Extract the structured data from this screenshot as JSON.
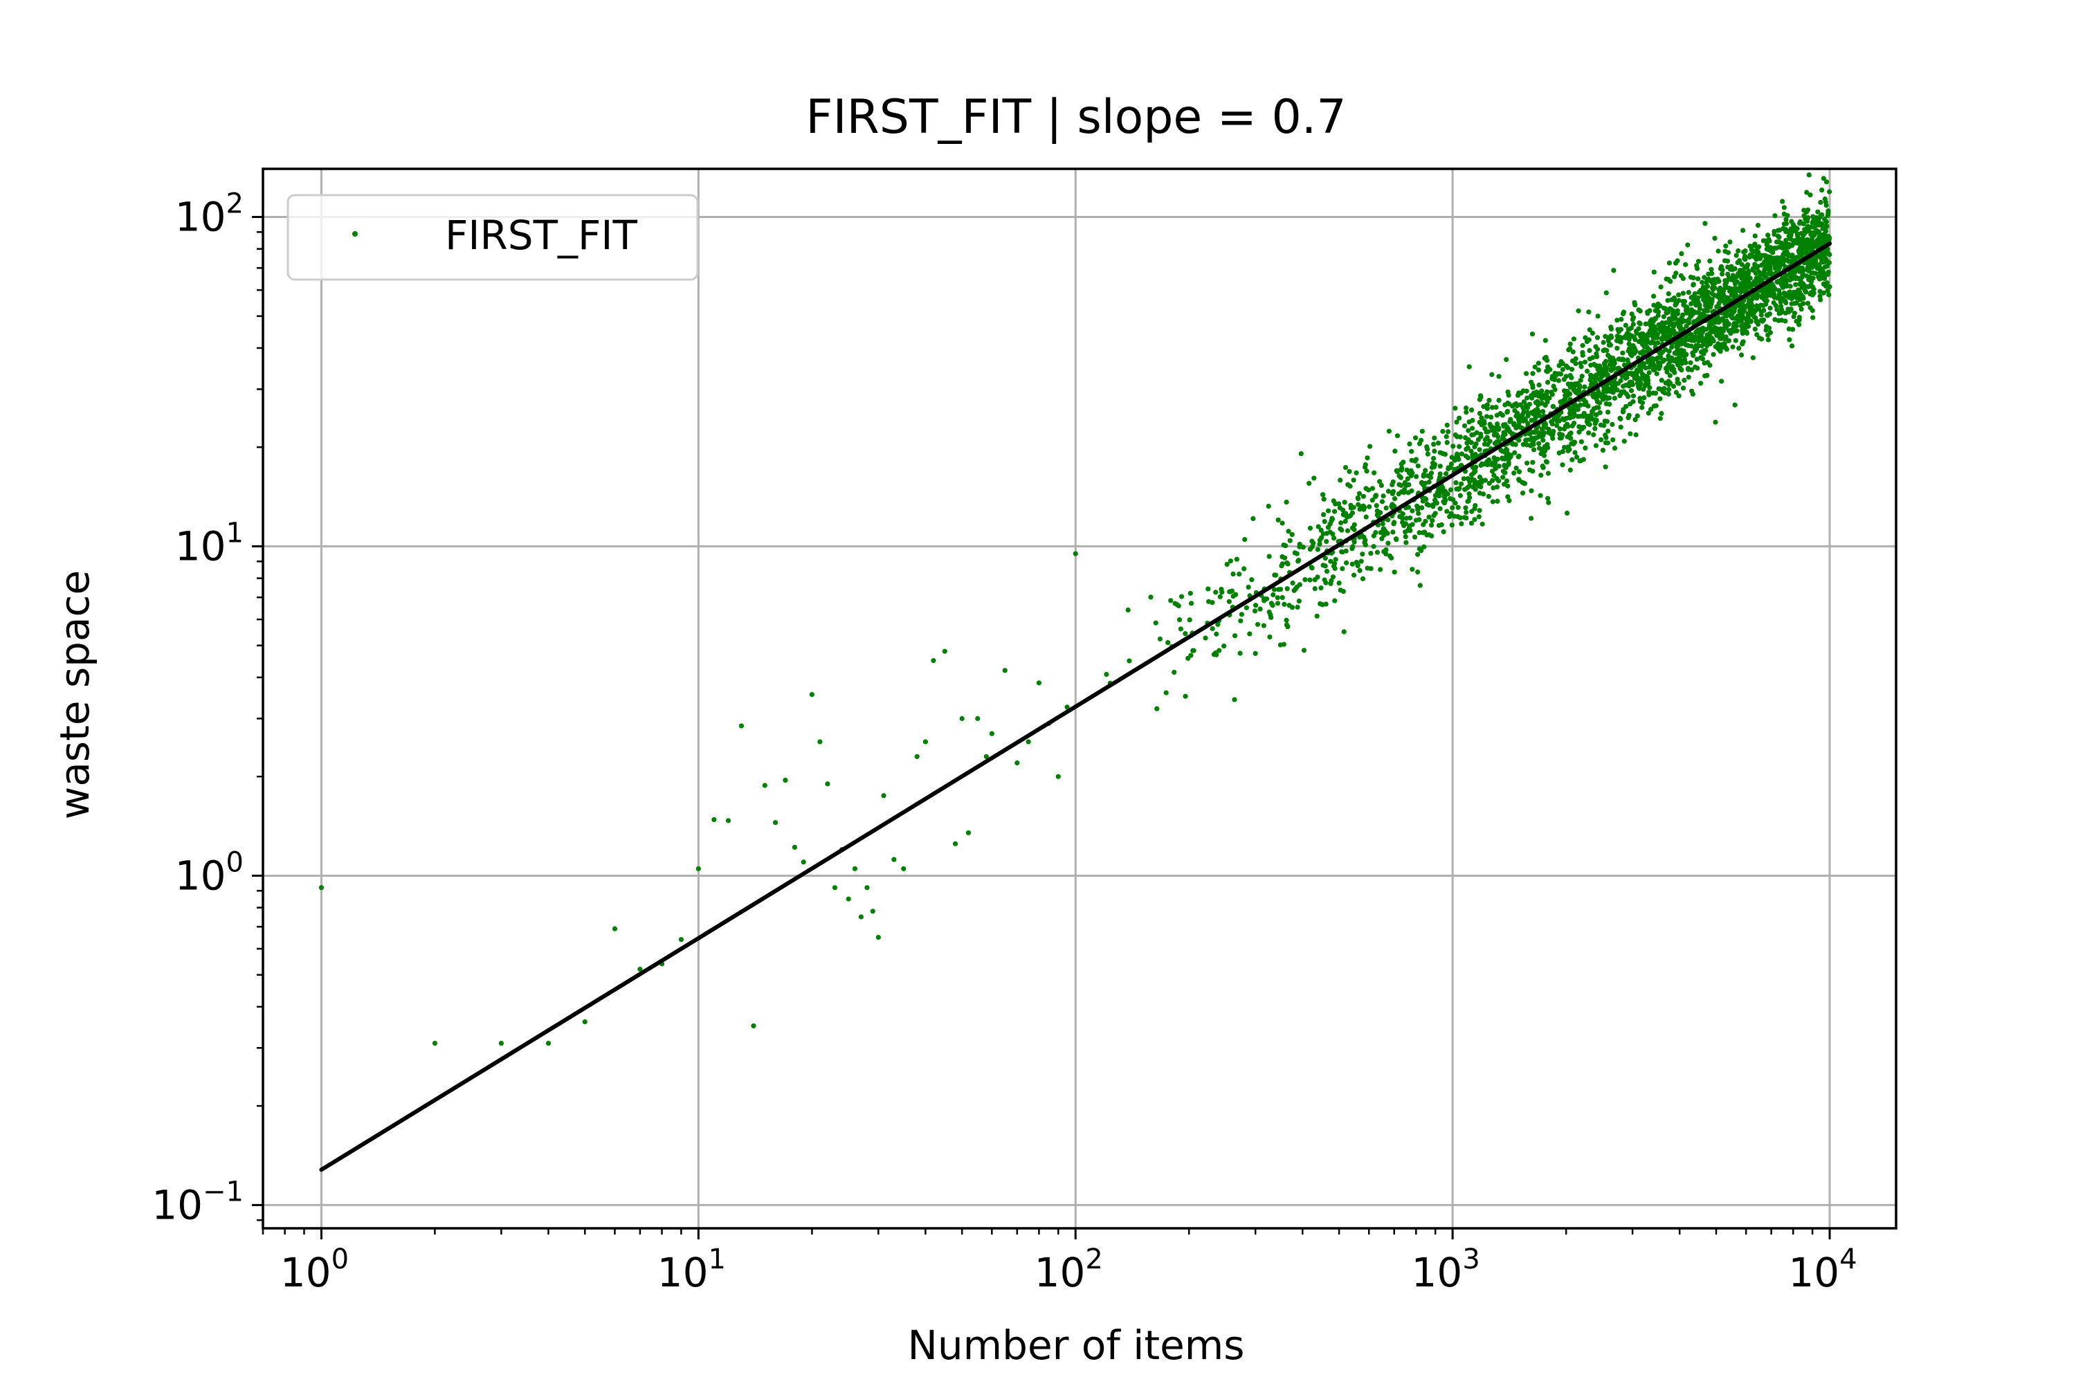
{
  "chart_data": {
    "type": "scatter",
    "title": "FIRST_FIT | slope = 0.7",
    "xlabel": "Number of items",
    "ylabel": "waste space",
    "xscale": "log",
    "yscale": "log",
    "xlim": [
      0.7,
      15000
    ],
    "ylim": [
      0.085,
      140
    ],
    "grid": true,
    "legend": {
      "placement": "top-left",
      "entries": [
        "FIRST_FIT"
      ]
    },
    "x_ticks": [
      {
        "value": 1,
        "base": "10",
        "exp": "0"
      },
      {
        "value": 10,
        "base": "10",
        "exp": "1"
      },
      {
        "value": 100,
        "base": "10",
        "exp": "2"
      },
      {
        "value": 1000,
        "base": "10",
        "exp": "3"
      },
      {
        "value": 10000,
        "base": "10",
        "exp": "4"
      }
    ],
    "y_ticks": [
      {
        "value": 0.1,
        "base": "10",
        "exp": "−1"
      },
      {
        "value": 1,
        "base": "10",
        "exp": "0"
      },
      {
        "value": 10,
        "base": "10",
        "exp": "1"
      },
      {
        "value": 100,
        "base": "10",
        "exp": "2"
      }
    ],
    "series": [
      {
        "name": "FIRST_FIT",
        "color": "#008000",
        "marker": "point",
        "points": [
          [
            1,
            0.92
          ],
          [
            2,
            0.31
          ],
          [
            3,
            0.31
          ],
          [
            4,
            0.31
          ],
          [
            5,
            0.36
          ],
          [
            6,
            0.69
          ],
          [
            7,
            0.52
          ],
          [
            8,
            0.54
          ],
          [
            9,
            0.64
          ],
          [
            10,
            1.05
          ],
          [
            11,
            1.48
          ],
          [
            12,
            1.47
          ],
          [
            13,
            2.85
          ],
          [
            14,
            0.35
          ],
          [
            15,
            1.88
          ],
          [
            16,
            1.45
          ],
          [
            17,
            1.95
          ],
          [
            18,
            1.22
          ],
          [
            19,
            1.1
          ],
          [
            20,
            3.55
          ],
          [
            21,
            2.55
          ],
          [
            22,
            1.9
          ],
          [
            23,
            0.92
          ],
          [
            24,
            1.2
          ],
          [
            25,
            0.85
          ],
          [
            26,
            1.05
          ],
          [
            27,
            0.75
          ],
          [
            28,
            0.92
          ],
          [
            29,
            0.78
          ],
          [
            30,
            0.65
          ],
          [
            31,
            1.75
          ],
          [
            33,
            1.12
          ],
          [
            35,
            1.05
          ],
          [
            38,
            2.3
          ],
          [
            40,
            2.55
          ],
          [
            42,
            4.5
          ],
          [
            45,
            4.8
          ],
          [
            48,
            1.25
          ],
          [
            50,
            3.0
          ],
          [
            52,
            1.35
          ],
          [
            55,
            3.0
          ],
          [
            58,
            2.3
          ],
          [
            60,
            2.7
          ],
          [
            65,
            4.2
          ],
          [
            70,
            2.2
          ],
          [
            75,
            2.55
          ],
          [
            80,
            3.85
          ],
          [
            85,
            2.9
          ],
          [
            90,
            2.0
          ],
          [
            95,
            3.25
          ],
          [
            100,
            9.5
          ]
        ],
        "fit": {
          "x": [
            1,
            10000
          ],
          "y": [
            0.128,
            83
          ]
        }
      }
    ]
  }
}
